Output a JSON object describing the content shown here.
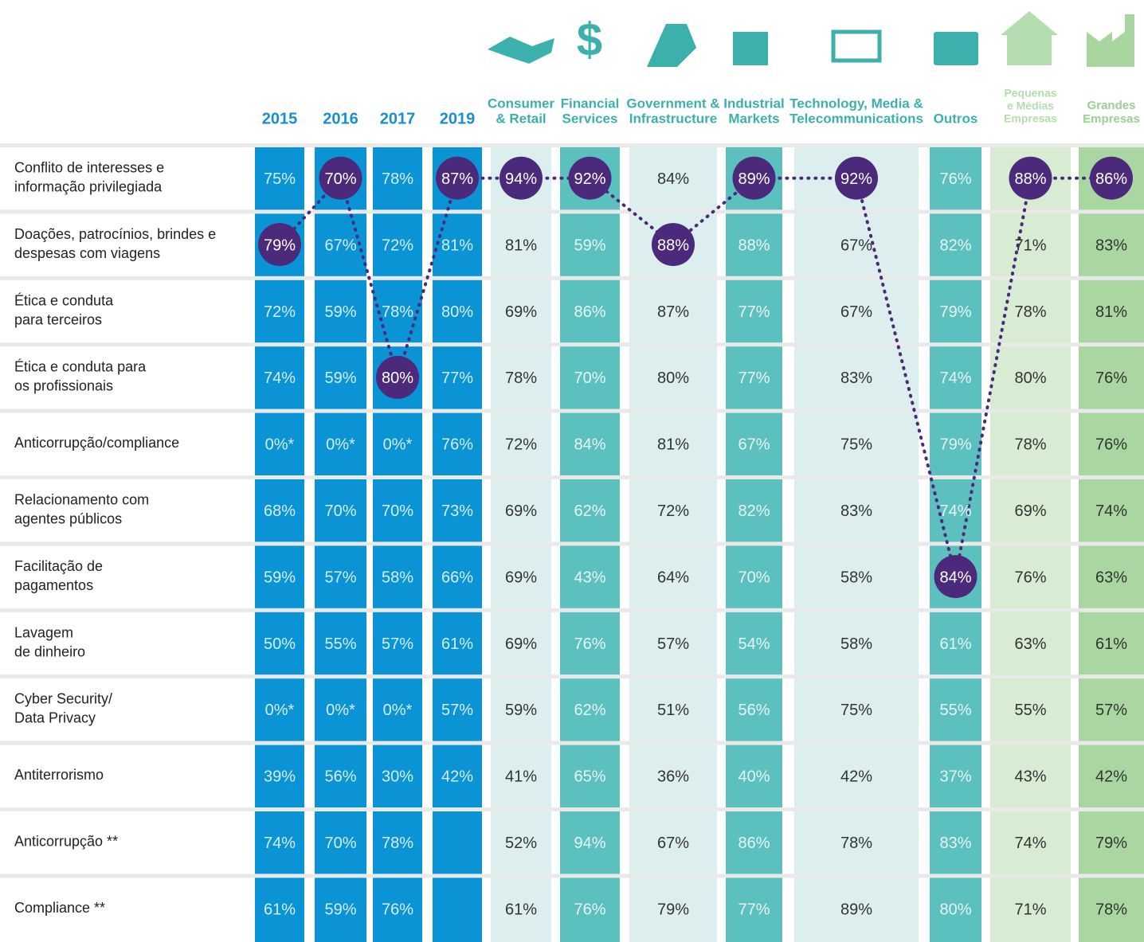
{
  "table": {
    "columns": [
      {
        "header": [
          "2015"
        ],
        "group": "year",
        "circled": 1
      },
      {
        "header": [
          "2016"
        ],
        "group": "year",
        "circled": 0
      },
      {
        "header": [
          "2017"
        ],
        "group": "year",
        "circled": 3
      },
      {
        "header": [
          "2019"
        ],
        "group": "year",
        "circled": 0
      },
      {
        "header": [
          "Consumer",
          "& Retail"
        ],
        "group": "light",
        "circled": 0
      },
      {
        "header": [
          "Financial",
          "Services"
        ],
        "group": "teal",
        "circled": 0
      },
      {
        "header": [
          "Government &",
          "Infrastructure"
        ],
        "group": "light",
        "circled": 1
      },
      {
        "header": [
          "Industrial",
          "Markets"
        ],
        "group": "teal",
        "circled": 0
      },
      {
        "header": [
          "Technology, Media &",
          "Telecommunications"
        ],
        "group": "light",
        "circled": 0
      },
      {
        "header": [
          "Outros"
        ],
        "group": "teal",
        "circled": 6
      },
      {
        "header": [
          "Pequenas",
          "e Médias",
          "Empresas"
        ],
        "group": "pme",
        "circled": 0
      },
      {
        "header": [
          "Grandes",
          "Empresas"
        ],
        "group": "ge",
        "circled": 0
      }
    ],
    "rows": [
      {
        "label": [
          "Conflito de interesses e",
          "informação privilegiada"
        ],
        "cells": [
          "75%",
          "70%",
          "78%",
          "87%",
          "94%",
          "92%",
          "84%",
          "89%",
          "92%",
          "76%",
          "88%",
          "86%"
        ]
      },
      {
        "label": [
          "Doações, patrocínios, brindes e",
          "despesas com viagens"
        ],
        "cells": [
          "79%",
          "67%",
          "72%",
          "81%",
          "81%",
          "59%",
          "88%",
          "88%",
          "67%",
          "82%",
          "71%",
          "83%"
        ]
      },
      {
        "label": [
          "Ética e conduta",
          "para terceiros"
        ],
        "cells": [
          "72%",
          "59%",
          "78%",
          "80%",
          "69%",
          "86%",
          "87%",
          "77%",
          "67%",
          "79%",
          "78%",
          "81%"
        ]
      },
      {
        "label": [
          "Ética e conduta para",
          "os profissionais"
        ],
        "cells": [
          "74%",
          "59%",
          "80%",
          "77%",
          "78%",
          "70%",
          "80%",
          "77%",
          "83%",
          "74%",
          "80%",
          "76%"
        ]
      },
      {
        "label": [
          "Anticorrupção/compliance"
        ],
        "cells": [
          "0%*",
          "0%*",
          "0%*",
          "76%",
          "72%",
          "84%",
          "81%",
          "67%",
          "75%",
          "79%",
          "78%",
          "76%"
        ]
      },
      {
        "label": [
          "Relacionamento com",
          "agentes públicos"
        ],
        "cells": [
          "68%",
          "70%",
          "70%",
          "73%",
          "69%",
          "62%",
          "72%",
          "82%",
          "83%",
          "74%",
          "69%",
          "74%"
        ]
      },
      {
        "label": [
          "Facilitação de",
          "pagamentos"
        ],
        "cells": [
          "59%",
          "57%",
          "58%",
          "66%",
          "69%",
          "43%",
          "64%",
          "70%",
          "58%",
          "84%",
          "76%",
          "63%"
        ]
      },
      {
        "label": [
          "Lavagem",
          "de dinheiro"
        ],
        "cells": [
          "50%",
          "55%",
          "57%",
          "61%",
          "69%",
          "76%",
          "57%",
          "54%",
          "58%",
          "61%",
          "63%",
          "61%"
        ]
      },
      {
        "label": [
          "Cyber Security/",
          "Data Privacy"
        ],
        "cells": [
          "0%*",
          "0%*",
          "0%*",
          "57%",
          "59%",
          "62%",
          "51%",
          "56%",
          "75%",
          "55%",
          "55%",
          "57%"
        ]
      },
      {
        "label": [
          "Antiterrorismo"
        ],
        "cells": [
          "39%",
          "56%",
          "30%",
          "42%",
          "41%",
          "65%",
          "36%",
          "40%",
          "42%",
          "37%",
          "43%",
          "42%"
        ]
      },
      {
        "label": [
          "Anticorrupção **"
        ],
        "cells": [
          "74%",
          "70%",
          "78%",
          null,
          "52%",
          "94%",
          "67%",
          "86%",
          "78%",
          "83%",
          "74%",
          "79%"
        ]
      },
      {
        "label": [
          "Compliance **"
        ],
        "cells": [
          "61%",
          "59%",
          "76%",
          null,
          "61%",
          "76%",
          "79%",
          "77%",
          "89%",
          "80%",
          "71%",
          "78%"
        ]
      }
    ]
  }
}
